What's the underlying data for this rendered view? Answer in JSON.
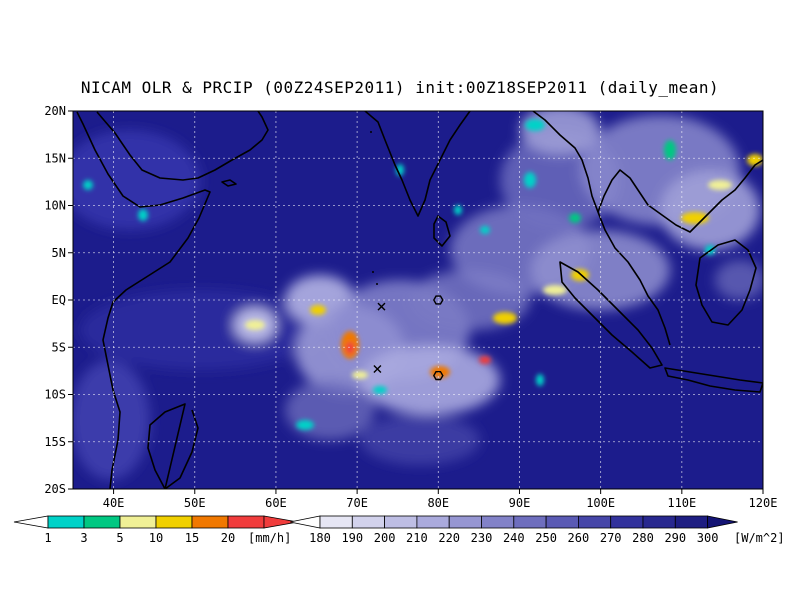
{
  "title": "NICAM OLR & PRCIP (00Z24SEP2011) init:00Z18SEP2011 (daily_mean)",
  "map": {
    "lon_range": [
      35,
      120
    ],
    "lat_range": [
      -20,
      20
    ],
    "lat_ticks": [
      {
        "v": 20,
        "label": "20N"
      },
      {
        "v": 15,
        "label": "15N"
      },
      {
        "v": 10,
        "label": "10N"
      },
      {
        "v": 5,
        "label": "5N"
      },
      {
        "v": 0,
        "label": "EQ"
      },
      {
        "v": -5,
        "label": "5S"
      },
      {
        "v": -10,
        "label": "10S"
      },
      {
        "v": -15,
        "label": "15S"
      },
      {
        "v": -20,
        "label": "20S"
      }
    ],
    "lon_ticks": [
      {
        "v": 40,
        "label": "40E"
      },
      {
        "v": 50,
        "label": "50E"
      },
      {
        "v": 60,
        "label": "60E"
      },
      {
        "v": 70,
        "label": "70E"
      },
      {
        "v": 80,
        "label": "80E"
      },
      {
        "v": 90,
        "label": "90E"
      },
      {
        "v": 100,
        "label": "100E"
      },
      {
        "v": 110,
        "label": "110E"
      },
      {
        "v": 120,
        "label": "120E"
      }
    ],
    "markers": [
      {
        "type": "x",
        "lon": 73.0,
        "lat": -0.7
      },
      {
        "type": "x",
        "lon": 72.5,
        "lat": -7.3
      },
      {
        "type": "hexagon",
        "lon": 80.0,
        "lat": 0.0
      },
      {
        "type": "hexagon",
        "lon": 80.0,
        "lat": -8.0
      }
    ],
    "colors": {
      "background": "#1c1c8c",
      "coast": "#000000",
      "grid": "#ffffff"
    }
  },
  "precip_colorbar": {
    "unit": "[mm/h]",
    "labels": [
      "1",
      "3",
      "5",
      "10",
      "15",
      "20"
    ],
    "colors": [
      "#00d2c8",
      "#00c882",
      "#f0f096",
      "#f0d000",
      "#f07800",
      "#f03c3c"
    ]
  },
  "olr_colorbar": {
    "unit": "[W/m^2]",
    "labels": [
      "180",
      "190",
      "200",
      "210",
      "220",
      "230",
      "240",
      "250",
      "260",
      "270",
      "280",
      "290",
      "300"
    ],
    "colors": [
      "#e6e6f4",
      "#d2d2ec",
      "#bebee4",
      "#aaaadc",
      "#9696d2",
      "#8282c8",
      "#6e6ebe",
      "#5a5ab4",
      "#4646a8",
      "#32329c",
      "#28288f",
      "#1e1e82",
      "#141474"
    ]
  }
}
